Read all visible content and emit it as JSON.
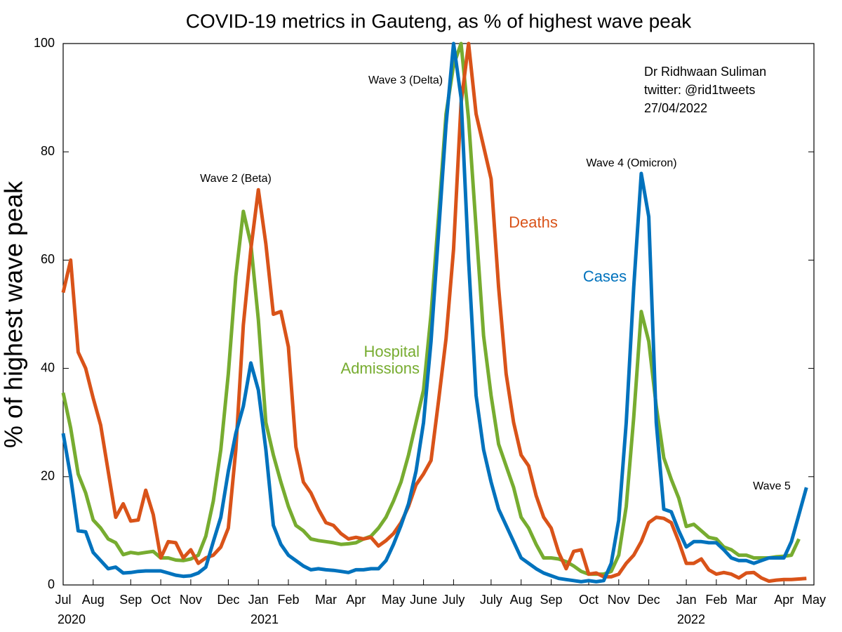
{
  "chart_data": {
    "type": "line",
    "title": "COVID-19 metrics in Gauteng, as % of highest wave peak",
    "y_label": "% of highest wave peak",
    "categories": [
      "Jul",
      null,
      null,
      null,
      "Aug",
      null,
      null,
      null,
      null,
      "Sep",
      null,
      null,
      null,
      "Oct",
      null,
      null,
      null,
      "Nov",
      null,
      null,
      null,
      null,
      "Dec",
      null,
      null,
      null,
      "Jan",
      null,
      null,
      null,
      "Feb",
      null,
      null,
      null,
      null,
      "Mar",
      null,
      null,
      null,
      "Apr",
      null,
      null,
      null,
      null,
      "May",
      null,
      null,
      null,
      "June",
      null,
      null,
      null,
      "July",
      null,
      null,
      null,
      null,
      "July",
      null,
      null,
      null,
      "Aug",
      null,
      null,
      null,
      "Sep",
      null,
      null,
      null,
      null,
      "Oct",
      null,
      null,
      null,
      "Nov",
      null,
      null,
      null,
      "Dec",
      null,
      null,
      null,
      null,
      "Jan",
      null,
      null,
      null,
      "Feb",
      null,
      null,
      null,
      "Mar",
      null,
      null,
      null,
      null,
      "Apr",
      null,
      null,
      null,
      "May"
    ],
    "year_labels": [
      "2020",
      "2021",
      "2022"
    ],
    "series": [
      {
        "name": "Cases",
        "color": "#0072bd",
        "values": [
          28,
          20,
          10,
          9.8,
          6,
          4.5,
          3,
          3.3,
          2.2,
          2.3,
          2.5,
          2.6,
          2.6,
          2.6,
          2.2,
          1.8,
          1.6,
          1.7,
          2.2,
          3.3,
          8,
          12.5,
          21,
          28,
          33,
          41,
          36,
          25,
          11,
          7.5,
          5.5,
          4.5,
          3.5,
          2.8,
          3,
          2.8,
          2.7,
          2.5,
          2.3,
          2.8,
          2.8,
          3,
          3,
          4.5,
          7.5,
          11,
          15,
          21,
          30,
          45,
          65,
          85,
          100,
          90,
          60,
          35,
          25,
          19,
          14,
          11,
          8,
          5,
          4,
          3,
          2.2,
          1.7,
          1.2,
          1,
          0.8,
          0.6,
          0.8,
          0.6,
          0.8,
          4,
          12,
          30,
          55,
          76,
          68,
          30,
          14,
          13.5,
          10,
          7,
          8,
          8,
          7.8,
          7.8,
          6.5,
          5,
          4.5,
          4.5,
          4,
          4.5,
          5,
          5,
          5,
          8,
          13,
          18,
          null
        ]
      },
      {
        "name": "Hospital Admissions",
        "color": "#77ac30",
        "values": [
          35.5,
          29,
          20.5,
          17,
          12,
          10.5,
          8.5,
          7.8,
          5.6,
          6,
          5.8,
          6,
          6.2,
          5,
          5,
          4.6,
          4.5,
          4.8,
          5.5,
          9,
          15.5,
          25,
          39,
          57,
          69,
          63,
          49,
          30,
          24,
          19,
          14.5,
          11,
          10,
          8.5,
          8.2,
          8,
          7.8,
          7.5,
          7.6,
          7.8,
          8.5,
          9,
          10.5,
          12.5,
          15.5,
          19,
          24,
          30,
          36,
          50,
          68,
          87,
          96,
          100,
          86,
          66,
          46,
          35,
          26,
          22,
          18,
          12.5,
          10.5,
          7.5,
          5,
          5,
          4.8,
          4.3,
          3.5,
          2.5,
          2,
          2,
          2,
          2.5,
          5.5,
          14.5,
          31,
          50.5,
          45,
          33,
          23.5,
          19.5,
          16,
          10.8,
          11.2,
          10,
          8.8,
          8.5,
          7,
          6.5,
          5.5,
          5.5,
          5,
          5,
          5,
          5.2,
          5.3,
          5.5,
          8.5,
          null,
          null
        ]
      },
      {
        "name": "Deaths",
        "color": "#d95319",
        "values": [
          54,
          60,
          43,
          40,
          34.5,
          29.5,
          21,
          12.5,
          15,
          11.8,
          12,
          17.5,
          13,
          5,
          8,
          7.8,
          5,
          6.5,
          4,
          5,
          5.5,
          7,
          10.5,
          25,
          48,
          62,
          73,
          63,
          50,
          50.5,
          44,
          25.5,
          19,
          17,
          14,
          11.5,
          11,
          9.5,
          8.5,
          8.8,
          8.5,
          8.8,
          7.2,
          8.2,
          9.5,
          11.5,
          14.5,
          18.5,
          20.5,
          23,
          34,
          45.5,
          62,
          89,
          100,
          87,
          81,
          75,
          55,
          39,
          30,
          24,
          22,
          16.5,
          12.5,
          10.5,
          6,
          3,
          6.2,
          6.5,
          2,
          2.2,
          1.5,
          1.5,
          2,
          4,
          5.5,
          8,
          11.5,
          12.5,
          12.3,
          11.5,
          8,
          4,
          4,
          4.8,
          2.8,
          2,
          2.3,
          2,
          1.3,
          2.2,
          2.3,
          1.3,
          0.7,
          0.9,
          1,
          1,
          1.1,
          1.2,
          null
        ]
      }
    ],
    "annotations": [
      "Wave 2 (Beta)",
      "Wave 3 (Delta)",
      "Wave 4 (Omicron)",
      "Wave 5"
    ],
    "credits": [
      "Dr Ridhwaan Suliman",
      "twitter: @rid1tweets",
      "27/04/2022"
    ],
    "ylim": [
      0,
      100
    ],
    "yticks": [
      0,
      20,
      40,
      60,
      80,
      100
    ],
    "grid": false
  }
}
